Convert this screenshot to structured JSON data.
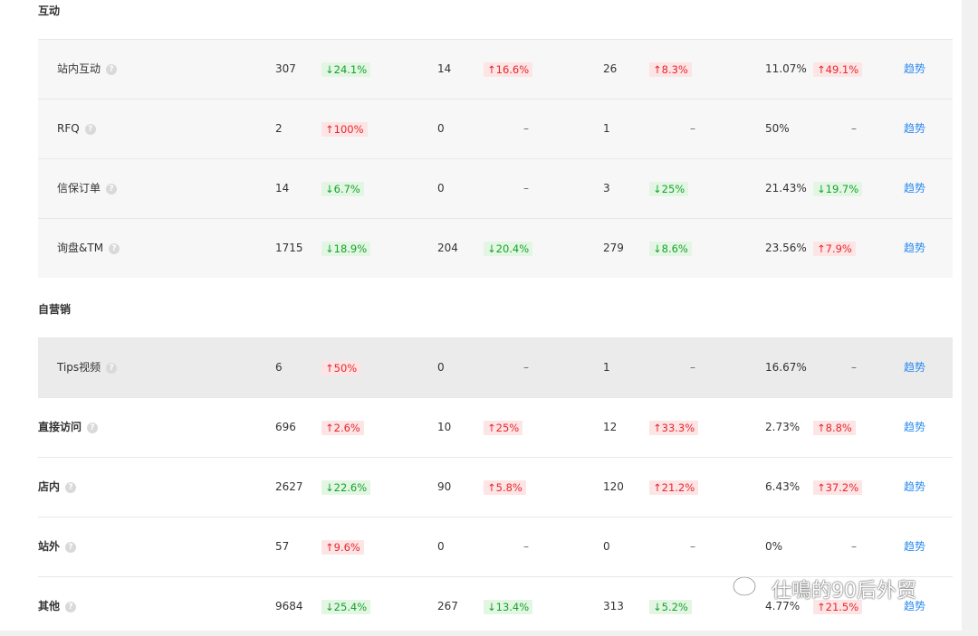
{
  "sections": {
    "hudong": "互动",
    "ziyingxiao": "自营销"
  },
  "trend_label": "趋势",
  "help_glyph": "?",
  "dash": "–",
  "rows": [
    {
      "name": "站内互动",
      "v1": "307",
      "c1": "↓24.1%",
      "v2": "14",
      "c2": "↑16.6%",
      "v3": "26",
      "c3": "↑8.3%",
      "v4": "11.07%",
      "c4": "↑49.1%"
    },
    {
      "name": "RFQ",
      "v1": "2",
      "c1": "↑100%",
      "v2": "0",
      "c2": "–",
      "v3": "1",
      "c3": "–",
      "v4": "50%",
      "c4": "–"
    },
    {
      "name": "信保订单",
      "v1": "14",
      "c1": "↓6.7%",
      "v2": "0",
      "c2": "–",
      "v3": "3",
      "c3": "↓25%",
      "v4": "21.43%",
      "c4": "↓19.7%"
    },
    {
      "name": "询盘&TM",
      "v1": "1715",
      "c1": "↓18.9%",
      "v2": "204",
      "c2": "↓20.4%",
      "v3": "279",
      "c3": "↓8.6%",
      "v4": "23.56%",
      "c4": "↑7.9%"
    },
    {
      "name": "Tips视频",
      "v1": "6",
      "c1": "↑50%",
      "v2": "0",
      "c2": "–",
      "v3": "1",
      "c3": "–",
      "v4": "16.67%",
      "c4": "–"
    },
    {
      "name": "直接访问",
      "v1": "696",
      "c1": "↑2.6%",
      "v2": "10",
      "c2": "↑25%",
      "v3": "12",
      "c3": "↑33.3%",
      "v4": "2.73%",
      "c4": "↑8.8%"
    },
    {
      "name": "店内",
      "v1": "2627",
      "c1": "↓22.6%",
      "v2": "90",
      "c2": "↑5.8%",
      "v3": "120",
      "c3": "↑21.2%",
      "v4": "6.43%",
      "c4": "↑37.2%"
    },
    {
      "name": "站外",
      "v1": "57",
      "c1": "↑9.6%",
      "v2": "0",
      "c2": "–",
      "v3": "0",
      "c3": "–",
      "v4": "0%",
      "c4": "–"
    },
    {
      "name": "其他",
      "v1": "9684",
      "c1": "↓25.4%",
      "v2": "267",
      "c2": "↓13.4%",
      "v3": "313",
      "c3": "↓5.2%",
      "v4": "4.77%",
      "c4": "↑21.5%"
    }
  ],
  "watermark": "仕鳴的90后外贸",
  "colors": {
    "up": "#e8262d",
    "down": "#16a329",
    "link": "#2d8cf0"
  }
}
